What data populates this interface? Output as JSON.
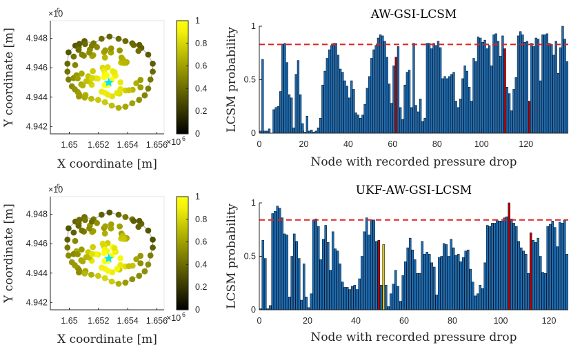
{
  "colors": {
    "bar": "#1f6fb5",
    "bar_edge": "#0a1a2e",
    "red_bar": "#c00000",
    "yellow_bar": "#e8c800",
    "threshold": "#e02020",
    "map_marker": "#00e5ff",
    "axis": "#262626"
  },
  "chart_data": [
    {
      "id": "map-top",
      "type": "scatter",
      "xlabel": "X coordinate [m]",
      "ylabel": "Y coordinate [m]",
      "x_ticks": [
        "1.65",
        "1.652",
        "1.654",
        "1.656"
      ],
      "y_ticks": [
        "4.942",
        "4.944",
        "4.946",
        "4.948"
      ],
      "x_exponent": "6",
      "y_exponent": "6",
      "xlim": [
        1.6487,
        1.6565
      ],
      "ylim": [
        4.9415,
        4.9492
      ],
      "colorbar_ticks": [
        "0",
        "0.2",
        "0.4",
        "0.6",
        "0.8",
        "1"
      ],
      "colorbar_range": [
        0,
        1
      ],
      "marker": [
        1.6527,
        4.945
      ]
    },
    {
      "id": "bars-top",
      "type": "bar",
      "title": "AW-GSI-LCSM",
      "xlabel": "Node with recorded pressure drop",
      "ylabel": "LCSM probability",
      "x_ticks": [
        "0",
        "20",
        "40",
        "60",
        "80",
        "100",
        "120"
      ],
      "y_ticks": [
        "0",
        "0.5",
        "1"
      ],
      "xlim": [
        0,
        139
      ],
      "ylim": [
        0,
        1
      ],
      "threshold": 0.83,
      "count": 139,
      "highlight_red": [
        61,
        110,
        121
      ],
      "values": [
        0.02,
        0.69,
        0.02,
        0.02,
        0.04,
        0.0,
        0.22,
        0.24,
        0.25,
        0.39,
        0.83,
        0.84,
        0.66,
        0.36,
        0.33,
        0.05,
        0.55,
        0.68,
        0.36,
        0.09,
        0.01,
        0.16,
        0.02,
        0.03,
        0.01,
        0.02,
        0.05,
        0.14,
        0.45,
        0.58,
        0.7,
        0.78,
        0.82,
        0.84,
        0.84,
        0.73,
        0.6,
        0.57,
        0.49,
        0.44,
        0.33,
        0.49,
        0.41,
        0.19,
        0.17,
        0.14,
        0.17,
        0.27,
        0.42,
        0.53,
        0.7,
        0.78,
        0.82,
        0.89,
        0.92,
        0.91,
        0.86,
        0.71,
        0.46,
        0.28,
        0.63,
        0.71,
        0.81,
        0.24,
        0.13,
        0.45,
        0.57,
        0.59,
        0.24,
        0.84,
        0.26,
        0.2,
        0.32,
        0.11,
        0.14,
        0.84,
        0.84,
        0.79,
        0.84,
        0.82,
        0.86,
        0.8,
        0.51,
        0.53,
        0.51,
        0.53,
        0.55,
        0.57,
        0.3,
        0.24,
        0.32,
        0.51,
        0.63,
        0.58,
        0.43,
        0.3,
        0.7,
        0.67,
        0.9,
        0.89,
        0.85,
        0.87,
        0.79,
        0.82,
        0.63,
        0.92,
        0.93,
        0.86,
        0.72,
        0.91,
        0.79,
        0.43,
        0.37,
        0.21,
        0.41,
        0.52,
        0.91,
        0.95,
        0.92,
        0.85,
        0.86,
        0.3,
        0.84,
        0.81,
        0.89,
        0.88,
        0.49,
        0.92,
        0.92,
        0.93,
        0.84,
        0.83,
        0.73,
        0.86,
        0.56,
        0.8,
        1.0,
        0.88,
        0.67
      ]
    },
    {
      "id": "map-bottom",
      "type": "scatter",
      "xlabel": "X coordinate [m]",
      "ylabel": "Y coordinate [m]",
      "x_ticks": [
        "1.65",
        "1.652",
        "1.654",
        "1.656"
      ],
      "y_ticks": [
        "4.942",
        "4.944",
        "4.946",
        "4.948"
      ],
      "x_exponent": "6",
      "y_exponent": "6",
      "xlim": [
        1.6487,
        1.6565
      ],
      "ylim": [
        4.9415,
        4.9492
      ],
      "colorbar_ticks": [
        "0",
        "0.2",
        "0.4",
        "0.6",
        "0.8",
        "1"
      ],
      "colorbar_range": [
        0,
        1
      ],
      "marker": [
        1.6527,
        4.945
      ]
    },
    {
      "id": "bars-bottom",
      "type": "bar",
      "title": "UKF-AW-GSI-LCSM",
      "xlabel": "Node with recorded pressure drop",
      "ylabel": "LCSM probability",
      "x_ticks": [
        "0",
        "20",
        "40",
        "60",
        "80",
        "100",
        "120"
      ],
      "y_ticks": [
        "0",
        "0.5",
        "1"
      ],
      "xlim": [
        0,
        128
      ],
      "ylim": [
        0,
        1
      ],
      "threshold": 0.84,
      "count": 128,
      "highlight_red": [
        49,
        103,
        112
      ],
      "highlight_yellow": [
        51
      ],
      "values": [
        0.01,
        0.65,
        0.48,
        0.01,
        0.04,
        0.9,
        0.92,
        0.97,
        0.95,
        0.86,
        0.71,
        0.7,
        0.12,
        0.5,
        0.71,
        0.64,
        0.48,
        0.09,
        0.43,
        0.12,
        0.02,
        0.15,
        0.84,
        0.85,
        0.78,
        0.47,
        0.66,
        0.79,
        0.63,
        0.37,
        0.73,
        0.57,
        0.55,
        0.43,
        0.26,
        0.21,
        0.21,
        0.19,
        0.22,
        0.23,
        0.19,
        0.29,
        0.5,
        0.73,
        0.86,
        0.7,
        0.84,
        0.84,
        0.64,
        0.65,
        0.23,
        0.61,
        0.23,
        0.03,
        0.15,
        0.24,
        0.37,
        0.22,
        0.08,
        0.32,
        0.45,
        0.58,
        0.67,
        0.56,
        0.47,
        0.34,
        0.34,
        0.64,
        0.52,
        0.54,
        0.52,
        0.44,
        0.4,
        0.14,
        0.49,
        0.5,
        0.62,
        0.61,
        0.5,
        0.66,
        0.58,
        0.51,
        0.52,
        0.45,
        0.49,
        0.55,
        0.56,
        0.38,
        0.26,
        0.13,
        0.15,
        0.23,
        0.2,
        0.44,
        0.79,
        0.78,
        0.81,
        0.81,
        0.84,
        0.83,
        0.83,
        0.86,
        0.87,
        1.0,
        0.85,
        0.81,
        0.78,
        0.64,
        0.58,
        0.55,
        0.52,
        0.34,
        0.72,
        0.65,
        0.63,
        0.67,
        0.5,
        0.35,
        0.34,
        0.78,
        0.8,
        0.83,
        0.77,
        0.59,
        0.82,
        0.81,
        0.84,
        0.52
      ]
    }
  ]
}
